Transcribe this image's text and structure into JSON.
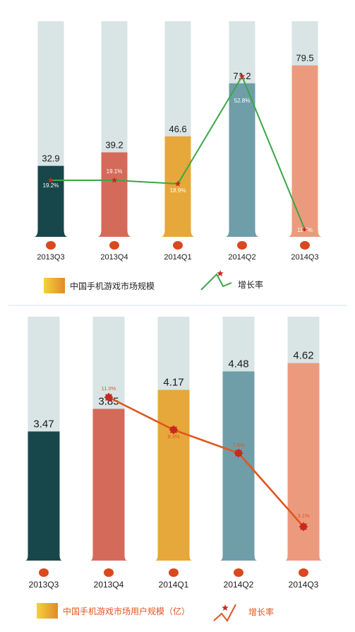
{
  "chart_data": [
    {
      "type": "bar",
      "categories": [
        "2013Q3",
        "2013Q4",
        "2014Q1",
        "2014Q2",
        "2014Q3"
      ],
      "series": [
        {
          "name": "中国手机游戏市场规模",
          "values": [
            32.9,
            39.2,
            46.6,
            71.2,
            79.5
          ],
          "value_labels": [
            "32.9",
            "39.2",
            "46.6",
            "71.2",
            "79.5"
          ]
        },
        {
          "name": "增长率",
          "type": "line",
          "values": [
            19.2,
            19.1,
            18.9,
            52.8,
            11.7
          ],
          "value_labels": [
            "19.2%",
            "19.1%",
            "18.9%",
            "52.8%",
            "11.7%"
          ]
        }
      ],
      "bar_colors": [
        "#17474a",
        "#d46b5a",
        "#e6a83a",
        "#6f9ea8",
        "#ec9a7d"
      ],
      "line_color": "#3aa647",
      "marker_color": "#c8281e",
      "legend": [
        "中国手机游戏市场规模",
        "增长率"
      ]
    },
    {
      "type": "bar",
      "categories": [
        "2013Q3",
        "2013Q4",
        "2014Q1",
        "2014Q2",
        "2014Q3"
      ],
      "series": [
        {
          "name": "中国手机游戏市场用户规模（亿）",
          "values": [
            3.47,
            3.85,
            4.17,
            4.48,
            4.62
          ],
          "value_labels": [
            "3.47",
            "3.85",
            "4.17",
            "4.48",
            "4.62"
          ]
        },
        {
          "name": "增长率",
          "type": "line",
          "values": [
            null,
            11.0,
            8.3,
            7.5,
            3.1
          ],
          "value_labels": [
            "",
            "11.0%",
            "8.3%",
            "7.5%",
            "3.1%"
          ]
        }
      ],
      "bar_colors": [
        "#17474a",
        "#d46b5a",
        "#e6a83a",
        "#6f9ea8",
        "#ec9a7d"
      ],
      "line_color": "#e0561e",
      "marker_color": "#c8281e",
      "legend": [
        "中国手机游戏市场用户规模（亿）",
        "增长率"
      ]
    }
  ]
}
